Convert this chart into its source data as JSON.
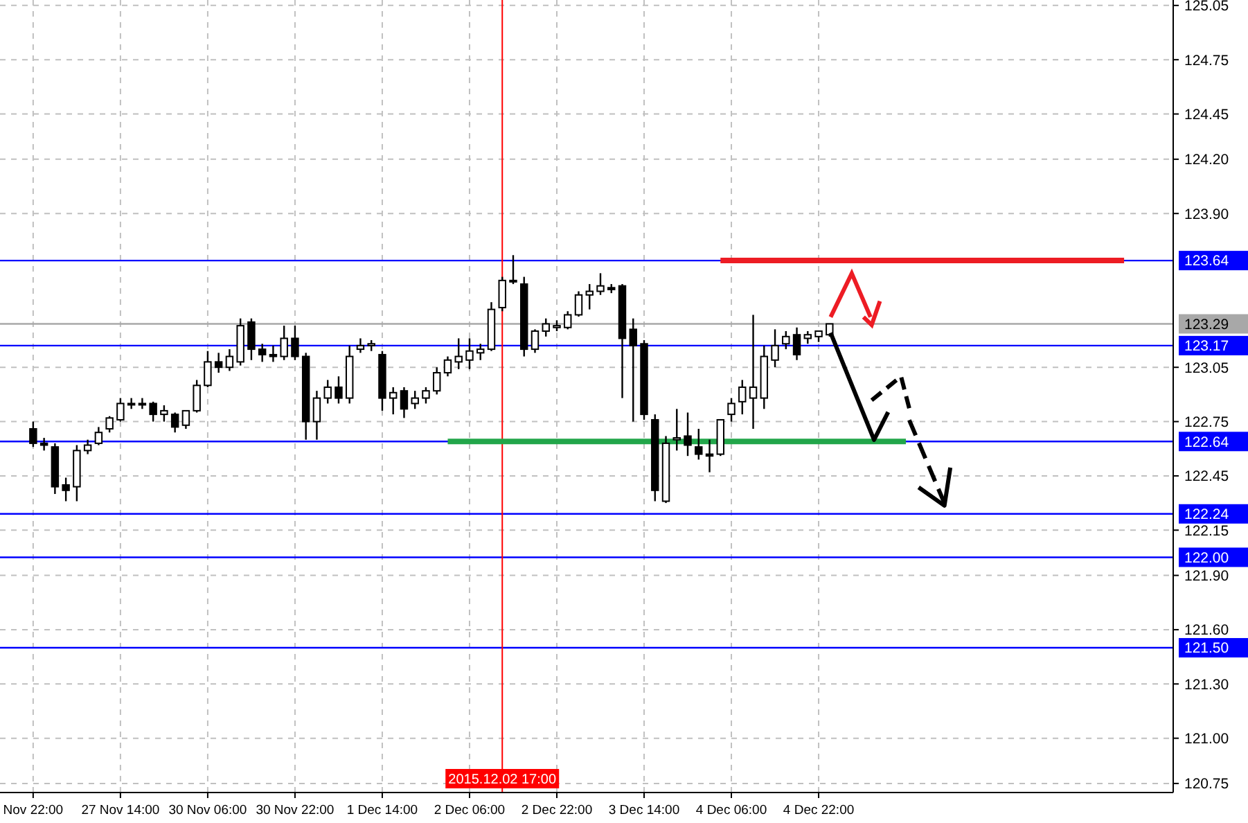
{
  "chart_data": {
    "type": "candlestick",
    "categories": [
      "Nov 22:00",
      null,
      null,
      null,
      null,
      null,
      null,
      null,
      "27 Nov 14:00",
      null,
      null,
      null,
      null,
      null,
      null,
      null,
      "30 Nov 06:00",
      null,
      null,
      null,
      null,
      null,
      null,
      null,
      "30 Nov 22:00",
      null,
      null,
      null,
      null,
      null,
      null,
      null,
      "1 Dec 14:00",
      null,
      null,
      null,
      null,
      null,
      null,
      null,
      "2 Dec 06:00",
      null,
      null,
      "2015.12.02 17:00",
      null,
      null,
      null,
      null,
      "2 Dec 22:00",
      null,
      null,
      null,
      null,
      null,
      null,
      null,
      "3 Dec 14:00",
      null,
      null,
      null,
      null,
      null,
      null,
      null,
      "4 Dec 06:00",
      null,
      null,
      null,
      null,
      null,
      null,
      null,
      "4 Dec 22:00",
      null,
      null,
      null,
      null,
      null,
      null,
      null,
      null,
      null,
      null,
      null,
      null,
      null,
      null,
      null,
      null,
      null,
      null,
      null,
      null,
      null,
      null,
      null,
      null,
      null,
      null,
      null,
      null,
      null,
      null,
      null,
      null
    ],
    "ohlc": [
      [
        122.71,
        122.75,
        122.61,
        122.63
      ],
      [
        122.63,
        122.66,
        122.59,
        122.62
      ],
      [
        122.61,
        122.63,
        122.35,
        122.39
      ],
      [
        122.4,
        122.44,
        122.31,
        122.37
      ],
      [
        122.39,
        122.62,
        122.31,
        122.59
      ],
      [
        122.59,
        122.65,
        122.57,
        122.62
      ],
      [
        122.63,
        122.72,
        122.62,
        122.69
      ],
      [
        122.71,
        122.78,
        122.69,
        122.77
      ],
      [
        122.76,
        122.88,
        122.75,
        122.85
      ],
      [
        122.85,
        122.88,
        122.82,
        122.85
      ],
      [
        122.85,
        122.88,
        122.82,
        122.85
      ],
      [
        122.85,
        122.86,
        122.75,
        122.79
      ],
      [
        122.79,
        122.84,
        122.75,
        122.81
      ],
      [
        122.79,
        122.8,
        122.69,
        122.72
      ],
      [
        122.73,
        122.81,
        122.71,
        122.81
      ],
      [
        122.81,
        122.98,
        122.8,
        122.95
      ],
      [
        122.95,
        123.14,
        122.94,
        123.08
      ],
      [
        123.08,
        123.13,
        123.02,
        123.05
      ],
      [
        123.05,
        123.15,
        123.03,
        123.11
      ],
      [
        123.08,
        123.32,
        123.06,
        123.28
      ],
      [
        123.3,
        123.32,
        123.09,
        123.15
      ],
      [
        123.15,
        123.18,
        123.08,
        123.12
      ],
      [
        123.12,
        123.17,
        123.08,
        123.11
      ],
      [
        123.11,
        123.28,
        123.09,
        123.21
      ],
      [
        123.21,
        123.28,
        123.09,
        123.11
      ],
      [
        123.11,
        123.13,
        122.65,
        122.75
      ],
      [
        122.75,
        122.92,
        122.65,
        122.88
      ],
      [
        122.88,
        122.98,
        122.85,
        122.94
      ],
      [
        122.94,
        123.0,
        122.85,
        122.88
      ],
      [
        122.88,
        123.17,
        122.85,
        123.11
      ],
      [
        123.15,
        123.21,
        123.13,
        123.17
      ],
      [
        123.17,
        123.2,
        123.14,
        123.18
      ],
      [
        123.12,
        123.14,
        122.81,
        122.88
      ],
      [
        122.88,
        122.94,
        122.79,
        122.91
      ],
      [
        122.92,
        122.94,
        122.77,
        122.82
      ],
      [
        122.85,
        122.92,
        122.82,
        122.88
      ],
      [
        122.88,
        122.94,
        122.85,
        122.92
      ],
      [
        122.92,
        123.05,
        122.9,
        123.02
      ],
      [
        123.02,
        123.11,
        123.0,
        123.09
      ],
      [
        123.08,
        123.21,
        123.04,
        123.11
      ],
      [
        123.09,
        123.21,
        123.04,
        123.14
      ],
      [
        123.13,
        123.18,
        123.09,
        123.15
      ],
      [
        123.15,
        123.41,
        123.14,
        123.37
      ],
      [
        123.38,
        123.55,
        123.36,
        123.53
      ],
      [
        123.53,
        123.67,
        123.51,
        123.53
      ],
      [
        123.51,
        123.55,
        123.11,
        123.15
      ],
      [
        123.15,
        123.26,
        123.13,
        123.25
      ],
      [
        123.25,
        123.32,
        123.22,
        123.29
      ],
      [
        123.27,
        123.31,
        123.25,
        123.28
      ],
      [
        123.27,
        123.36,
        123.26,
        123.34
      ],
      [
        123.34,
        123.47,
        123.33,
        123.45
      ],
      [
        123.45,
        123.51,
        123.37,
        123.47
      ],
      [
        123.47,
        123.57,
        123.45,
        123.5
      ],
      [
        123.49,
        123.51,
        123.46,
        123.48
      ],
      [
        123.5,
        123.51,
        122.88,
        123.21
      ],
      [
        123.26,
        123.32,
        122.75,
        123.17
      ],
      [
        123.18,
        123.2,
        122.76,
        122.79
      ],
      [
        122.76,
        122.79,
        122.31,
        122.37
      ],
      [
        122.31,
        122.67,
        122.3,
        122.63
      ],
      [
        122.65,
        122.82,
        122.59,
        122.66
      ],
      [
        122.67,
        122.8,
        122.56,
        122.62
      ],
      [
        122.61,
        122.71,
        122.54,
        122.57
      ],
      [
        122.57,
        122.65,
        122.47,
        122.56
      ],
      [
        122.57,
        122.76,
        122.56,
        122.76
      ],
      [
        122.79,
        122.88,
        122.75,
        122.85
      ],
      [
        122.86,
        122.98,
        122.79,
        122.94
      ],
      [
        122.88,
        123.34,
        122.71,
        122.94
      ],
      [
        122.88,
        123.17,
        122.82,
        123.11
      ],
      [
        123.09,
        123.26,
        123.05,
        123.17
      ],
      [
        123.18,
        123.25,
        123.15,
        123.22
      ],
      [
        123.23,
        123.27,
        123.09,
        123.12
      ],
      [
        123.21,
        123.25,
        123.18,
        123.23
      ],
      [
        123.22,
        123.25,
        123.19,
        123.25
      ],
      [
        123.23,
        123.29,
        123.22,
        123.29
      ],
      null,
      null,
      null,
      null,
      null,
      null,
      null,
      null,
      null,
      null,
      null,
      null,
      null,
      null,
      null,
      null,
      null,
      null,
      null,
      null,
      null,
      null,
      null,
      null,
      null,
      null,
      null,
      null,
      null,
      null,
      null
    ],
    "series": [
      {
        "type": "line",
        "color": "#ed1c24",
        "values": [
          null,
          null,
          null,
          null,
          null,
          null,
          null,
          null,
          null,
          null,
          null,
          null,
          null,
          null,
          null,
          null,
          null,
          null,
          null,
          null,
          null,
          null,
          null,
          null,
          null,
          null,
          null,
          null,
          null,
          null,
          null,
          null,
          null,
          null,
          null,
          null,
          null,
          null,
          null,
          null,
          null,
          null,
          null,
          null,
          null,
          null,
          null,
          null,
          null,
          null,
          null,
          null,
          null,
          null,
          null,
          null,
          null,
          null,
          null,
          null,
          null,
          null,
          null,
          123.64,
          123.64,
          123.64,
          123.64,
          123.64,
          123.64,
          123.64,
          123.64,
          123.64,
          123.64,
          123.64,
          123.64,
          123.64,
          123.64,
          123.64,
          123.64,
          123.64,
          123.64,
          123.64,
          123.64,
          123.64,
          123.64,
          123.64,
          123.64,
          123.64,
          123.64,
          123.64,
          123.64,
          123.64,
          123.64,
          123.64,
          123.64,
          123.64,
          123.64,
          123.64,
          123.64,
          123.64,
          123.64,
          null,
          null,
          null,
          null
        ]
      },
      {
        "type": "line",
        "color": "#22a64a",
        "values": [
          null,
          null,
          null,
          null,
          null,
          null,
          null,
          null,
          null,
          null,
          null,
          null,
          null,
          null,
          null,
          null,
          null,
          null,
          null,
          null,
          null,
          null,
          null,
          null,
          null,
          null,
          null,
          null,
          null,
          null,
          null,
          null,
          null,
          null,
          null,
          null,
          null,
          null,
          122.64,
          122.64,
          122.64,
          122.64,
          122.64,
          122.64,
          122.64,
          122.64,
          122.64,
          122.64,
          122.64,
          122.64,
          122.64,
          122.64,
          122.64,
          122.64,
          122.64,
          122.64,
          122.64,
          122.64,
          122.64,
          122.64,
          122.64,
          122.64,
          122.64,
          122.64,
          122.64,
          122.64,
          122.64,
          122.64,
          122.64,
          122.64,
          122.64,
          122.64,
          122.64,
          122.64,
          122.64,
          122.64,
          122.64,
          122.64,
          122.64,
          122.64,
          122.64,
          null,
          null,
          null,
          null,
          null,
          null,
          null,
          null,
          null,
          null,
          null,
          null,
          null,
          null,
          null,
          null,
          null,
          null,
          null,
          null,
          null,
          null,
          null,
          null
        ]
      }
    ],
    "ylim": [
      120.7,
      125.08
    ],
    "yticks": [
      125.05,
      124.75,
      124.45,
      {
        "value": 124.2,
        "label": "124.20"
      },
      {
        "value": 123.9,
        "label": "123.90"
      },
      123.05,
      122.75,
      122.45,
      122.15,
      {
        "value": 121.9,
        "label": "121.90"
      },
      {
        "value": 121.6,
        "label": "121.60"
      },
      {
        "value": 121.3,
        "label": "121.30"
      },
      {
        "value": 121,
        "label": "121.00"
      },
      120.75
    ],
    "ref_lines": [
      {
        "axis": "y",
        "value": 123.64,
        "label": "123.64",
        "color": "#0000ff"
      },
      {
        "axis": "y",
        "value": 123.29,
        "label": "123.29",
        "color": "#a8a8a8"
      },
      {
        "axis": "y",
        "value": 123.17,
        "label": "123.17",
        "color": "#0000ff"
      },
      {
        "axis": "y",
        "value": 122.64,
        "label": "122.64",
        "color": "#0000ff"
      },
      {
        "axis": "y",
        "value": 122.24,
        "label": "122.24",
        "color": "#0000ff"
      },
      {
        "axis": "y",
        "value": 122,
        "label": "122.00",
        "color": "#0000ff"
      },
      {
        "axis": "y",
        "value": 121.5,
        "label": "121.50",
        "color": "#0000ff"
      },
      {
        "axis": "x",
        "value": "2015.12.02 17:00",
        "color": "#ff0000"
      }
    ],
    "grid": true
  }
}
